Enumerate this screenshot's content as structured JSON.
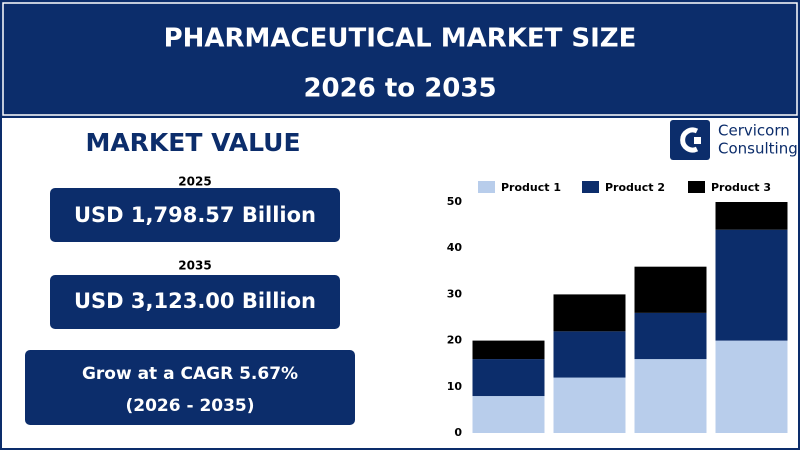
{
  "header": {
    "title": "PHARMACEUTICAL MARKET SIZE",
    "subtitle": "2026 to 2035"
  },
  "market_value": {
    "heading": "MARKET VALUE",
    "items": [
      {
        "year": "2025",
        "value": "USD 1,798.57 Billion"
      },
      {
        "year": "2035",
        "value": "USD 3,123.00 Billion"
      }
    ],
    "cagr": {
      "line1": "Grow at a CAGR 5.67%",
      "line2": "(2026 - 2035)"
    }
  },
  "logo": {
    "line1": "Cervicorn",
    "line2": "Consulting"
  },
  "chart_data": {
    "type": "bar",
    "stacked": true,
    "categories": [
      null,
      null,
      null,
      null
    ],
    "series": [
      {
        "name": "Product 1",
        "color": "#b8cdeb",
        "values": [
          8,
          12,
          16,
          20
        ]
      },
      {
        "name": "Product 2",
        "color": "#0c2d6b",
        "values": [
          8,
          10,
          10,
          24
        ]
      },
      {
        "name": "Product 3",
        "color": "#000000",
        "values": [
          4,
          8,
          10,
          6
        ]
      }
    ],
    "ylim": [
      0,
      50
    ],
    "yticks": [
      0,
      10,
      20,
      30,
      40,
      50
    ],
    "grid": false,
    "legend": "top"
  }
}
